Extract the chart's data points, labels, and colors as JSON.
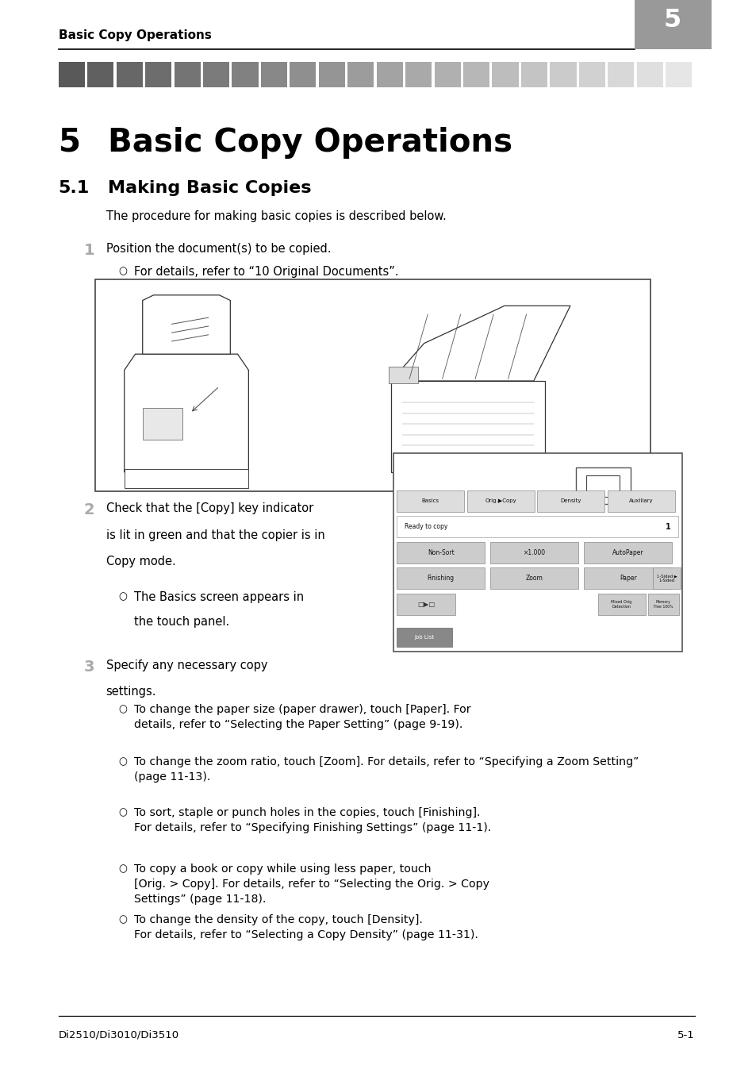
{
  "page_width": 9.54,
  "page_height": 13.52,
  "bg_color": "#ffffff",
  "header_text": "Basic Copy Operations",
  "header_chapter_num": "5",
  "chapter_num": "5",
  "chapter_title": "Basic Copy Operations",
  "section_num": "5.1",
  "section_title": "Making Basic Copies",
  "intro_text": "The procedure for making basic copies is described below.",
  "step1_num": "1",
  "step1_text": "Position the document(s) to be copied.",
  "step1_bullet": "For details, refer to “10 Original Documents”.",
  "step2_num": "2",
  "step2_text_line1": "Check that the [Copy] key indicator",
  "step2_text_line2": "is lit in green and that the copier is in",
  "step2_text_line3": "Copy mode.",
  "step2_bullet1": "The Basics screen appears in",
  "step2_bullet2": "the touch panel.",
  "step3_num": "3",
  "step3_text1": "Specify any necessary copy",
  "step3_text2": "settings.",
  "step3_bullets": [
    "To change the paper size (paper drawer), touch [Paper]. For\ndetails, refer to “Selecting the Paper Setting” (page 9-19).",
    "To change the zoom ratio, touch [Zoom]. For details, refer to “Specifying a Zoom Setting”\n(page 11-13).",
    "To sort, staple or punch holes in the copies, touch [Finishing].\nFor details, refer to “Specifying Finishing Settings” (page 11-1).",
    "To copy a book or copy while using less paper, touch\n[Orig. > Copy]. For details, refer to “Selecting the Orig. > Copy\nSettings” (page 11-18).",
    "To change the density of the copy, touch [Density].\nFor details, refer to “Selecting a Copy Density” (page 11-31)."
  ],
  "footer_left": "Di2510/Di3010/Di3510",
  "footer_right": "5-1",
  "line_color": "#000000",
  "text_color": "#000000",
  "gray_num_color": "#aaaaaa"
}
